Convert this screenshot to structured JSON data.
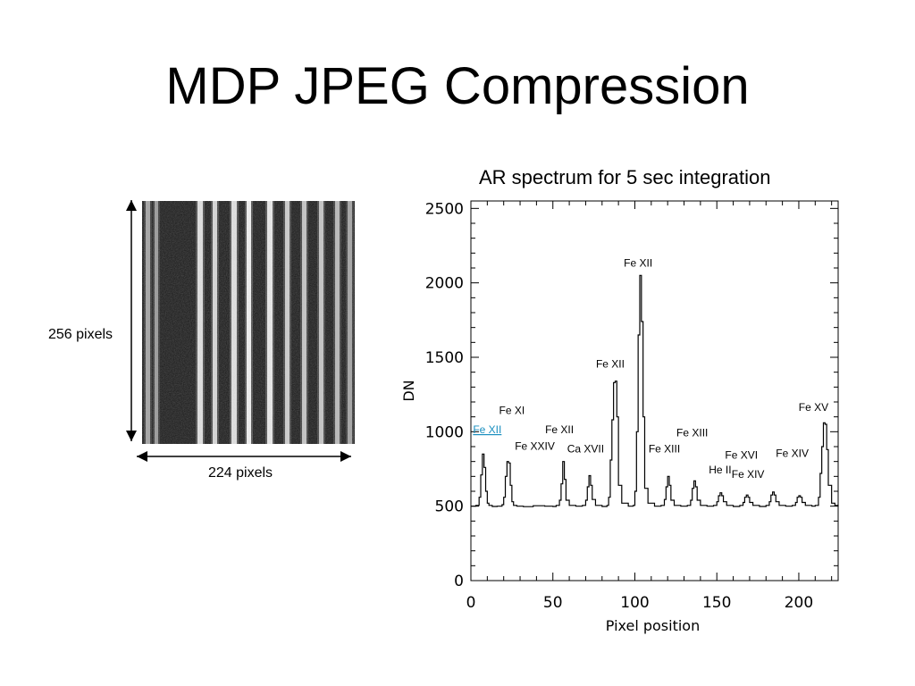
{
  "slide": {
    "title": "MDP JPEG Compression"
  },
  "detector_image": {
    "height_label": "256 pixels",
    "width_label": "224 pixels"
  },
  "chart_data": {
    "type": "line",
    "title": "AR spectrum for 5 sec integration",
    "xlabel": "Pixel position",
    "ylabel": "DN",
    "xlim": [
      0,
      224
    ],
    "ylim": [
      0,
      2550
    ],
    "xticks": [
      0,
      50,
      100,
      150,
      200
    ],
    "yticks": [
      0,
      500,
      1000,
      1500,
      2000,
      2500
    ],
    "grid": false,
    "series": [
      {
        "x": [
          0,
          3,
          5,
          6,
          7,
          8,
          9,
          10,
          11,
          13,
          16,
          19,
          20,
          21,
          22,
          23,
          24,
          25,
          26,
          28,
          32,
          38,
          45,
          50,
          52,
          54,
          55,
          56,
          57,
          58,
          60,
          64,
          68,
          70,
          71,
          72,
          73,
          74,
          76,
          80,
          83,
          84,
          85,
          86,
          87,
          88,
          89,
          90,
          92,
          96,
          99,
          100,
          101,
          102,
          103,
          104,
          105,
          106,
          108,
          112,
          116,
          118,
          119,
          120,
          121,
          122,
          124,
          128,
          132,
          134,
          135,
          136,
          137,
          138,
          140,
          144,
          148,
          150,
          151,
          152,
          153,
          154,
          156,
          160,
          164,
          166,
          167,
          168,
          169,
          170,
          172,
          176,
          180,
          182,
          183,
          184,
          185,
          186,
          188,
          192,
          196,
          198,
          199,
          200,
          201,
          202,
          204,
          208,
          210,
          212,
          213,
          214,
          215,
          216,
          217,
          218,
          220,
          222,
          224
        ],
        "values": [
          500,
          505,
          560,
          710,
          850,
          760,
          600,
          520,
          505,
          498,
          500,
          510,
          560,
          700,
          800,
          790,
          640,
          530,
          505,
          500,
          497,
          503,
          500,
          498,
          505,
          540,
          650,
          800,
          680,
          540,
          505,
          500,
          505,
          540,
          630,
          705,
          640,
          545,
          505,
          498,
          505,
          560,
          810,
          1080,
          1330,
          1340,
          1100,
          640,
          520,
          500,
          505,
          600,
          1000,
          1650,
          2050,
          1740,
          1100,
          620,
          520,
          500,
          505,
          545,
          630,
          700,
          640,
          540,
          505,
          500,
          505,
          540,
          620,
          670,
          630,
          540,
          505,
          500,
          505,
          530,
          570,
          590,
          570,
          530,
          505,
          498,
          505,
          525,
          560,
          575,
          560,
          525,
          505,
          498,
          505,
          530,
          575,
          595,
          575,
          530,
          505,
          500,
          505,
          525,
          560,
          570,
          560,
          525,
          505,
          500,
          505,
          560,
          720,
          900,
          1060,
          1050,
          880,
          640,
          520,
          505,
          500
        ]
      }
    ],
    "annotations": [
      {
        "text": "Fe XII",
        "x": 102,
        "y": 2110
      },
      {
        "text": "Fe XII",
        "x": 85,
        "y": 1430
      },
      {
        "text": "Fe XI",
        "x": 25,
        "y": 1120
      },
      {
        "text": "Fe XII",
        "x": 10,
        "y": 990,
        "link": true
      },
      {
        "text": "Fe XII",
        "x": 54,
        "y": 990
      },
      {
        "text": "Fe XXIV",
        "x": 39,
        "y": 880
      },
      {
        "text": "Ca XVII",
        "x": 70,
        "y": 860
      },
      {
        "text": "Fe XIII",
        "x": 135,
        "y": 970
      },
      {
        "text": "Fe XIII",
        "x": 118,
        "y": 860
      },
      {
        "text": "Fe XVI",
        "x": 165,
        "y": 820
      },
      {
        "text": "He II",
        "x": 152,
        "y": 720
      },
      {
        "text": "Fe XIV",
        "x": 196,
        "y": 830
      },
      {
        "text": "Fe XIV",
        "x": 169,
        "y": 690
      },
      {
        "text": "Fe XV",
        "x": 209,
        "y": 1140
      }
    ]
  }
}
